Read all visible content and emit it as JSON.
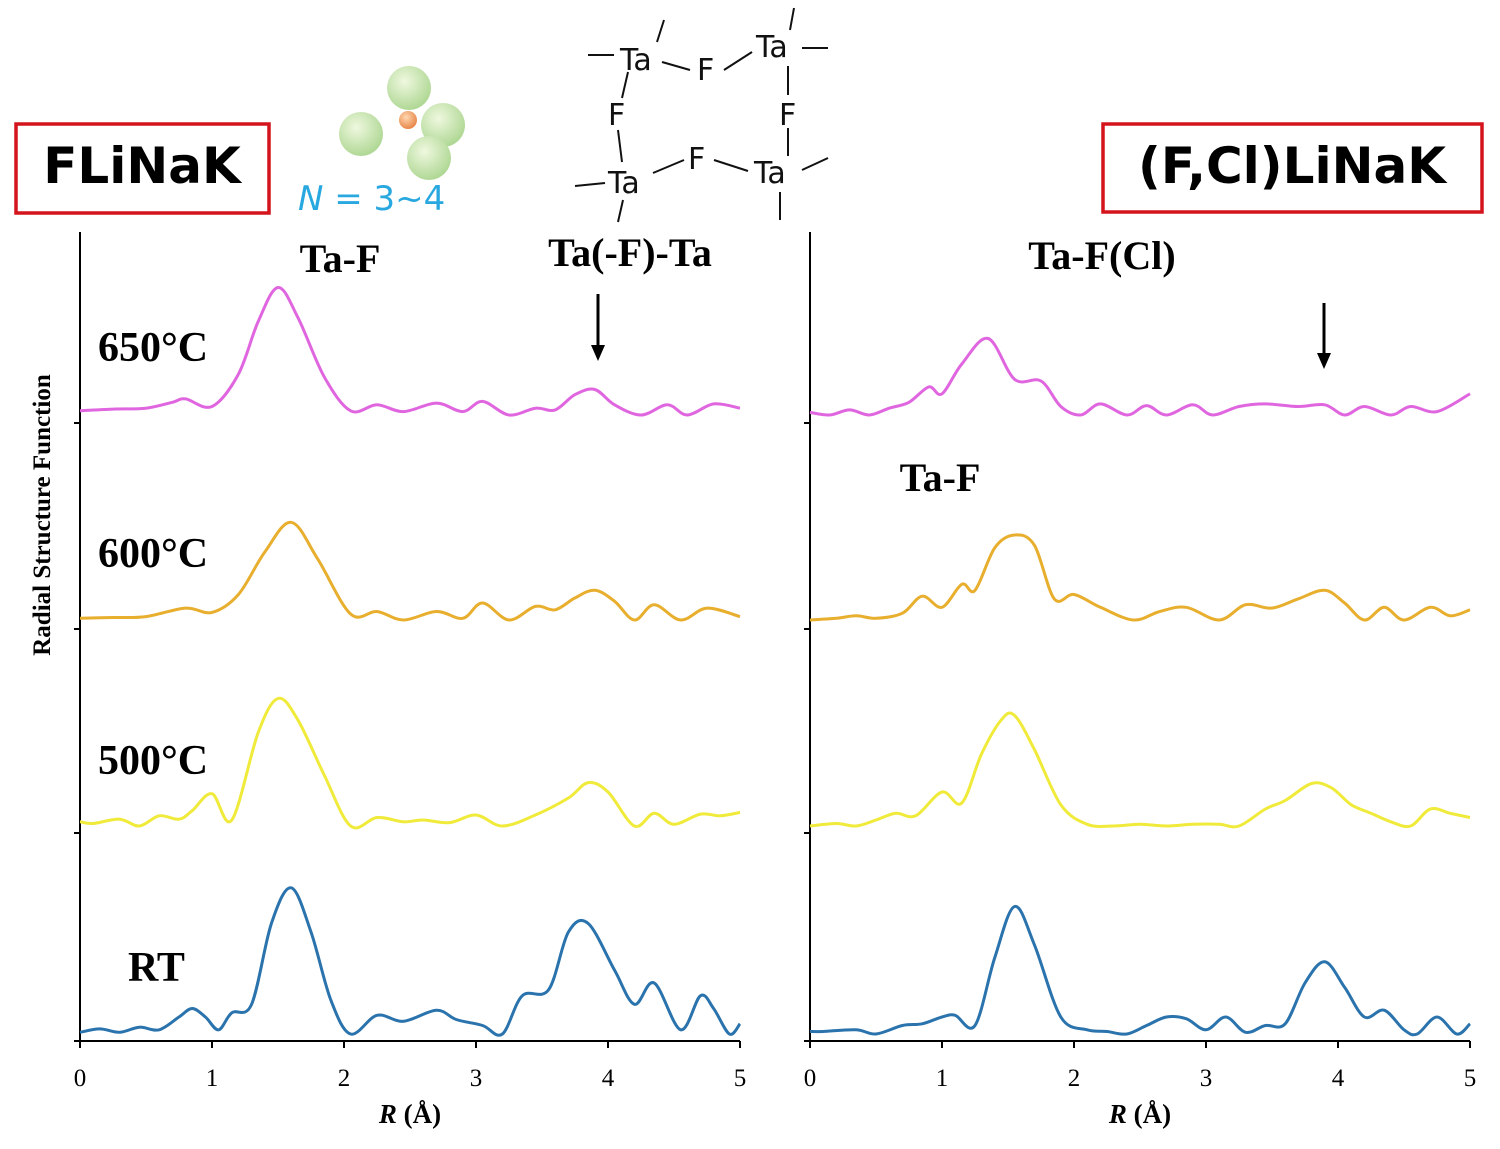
{
  "left_panel": {
    "title": "FLiNaK",
    "n_label_italic": "N",
    "n_label_rest": " = 3~4",
    "peak_labels": [
      "Ta-F",
      "Ta(-F)-Ta"
    ],
    "temperature_labels": [
      "650°C",
      "600°C",
      "500°C",
      "RT"
    ]
  },
  "right_panel": {
    "title": "(F,Cl)LiNaK",
    "peak_labels": [
      "Ta-F(Cl)",
      "Ta-F"
    ]
  },
  "structure_diagram": {
    "atoms": [
      "Ta",
      "F",
      "Ta",
      "F",
      "F",
      "Ta",
      "F",
      "Ta"
    ]
  },
  "colors": {
    "650C": "#e066e0",
    "600C": "#e8ae2e",
    "500C": "#f0ea3a",
    "RT": "#2a73ad",
    "frame": "#d4141c",
    "n_label": "#29a8e0"
  },
  "chart_data": [
    {
      "type": "line",
      "panel": "FLiNaK",
      "xlabel_italic": "R",
      "xlabel_rest": " (Å)",
      "ylabel": "Radial Structure Function",
      "xlim": [
        0,
        5
      ],
      "xticks": [
        "0",
        "1",
        "2",
        "3",
        "4",
        "5"
      ],
      "series": [
        {
          "name": "650°C",
          "color": "#e066e0",
          "x": [
            0.0,
            0.25,
            0.5,
            0.7,
            0.8,
            1.0,
            1.2,
            1.35,
            1.5,
            1.65,
            1.85,
            2.05,
            2.25,
            2.45,
            2.7,
            2.9,
            3.05,
            3.25,
            3.45,
            3.6,
            3.75,
            3.9,
            4.05,
            4.25,
            4.45,
            4.6,
            4.8,
            5.0
          ],
          "y": [
            0.05,
            0.07,
            0.08,
            0.15,
            0.19,
            0.1,
            0.48,
            1.1,
            1.5,
            1.15,
            0.45,
            0.05,
            0.12,
            0.04,
            0.14,
            0.04,
            0.16,
            0.0,
            0.08,
            0.06,
            0.24,
            0.3,
            0.12,
            0.0,
            0.12,
            0.0,
            0.13,
            0.08
          ]
        },
        {
          "name": "600°C",
          "color": "#e8ae2e",
          "x": [
            0.0,
            0.25,
            0.5,
            0.8,
            1.0,
            1.2,
            1.4,
            1.6,
            1.8,
            2.05,
            2.25,
            2.45,
            2.7,
            2.9,
            3.05,
            3.25,
            3.45,
            3.6,
            3.75,
            3.9,
            4.05,
            4.2,
            4.35,
            4.55,
            4.75,
            5.0
          ],
          "y": [
            0.02,
            0.03,
            0.04,
            0.14,
            0.09,
            0.3,
            0.8,
            1.15,
            0.72,
            0.07,
            0.1,
            0.0,
            0.1,
            0.02,
            0.2,
            0.0,
            0.16,
            0.12,
            0.26,
            0.35,
            0.22,
            0.0,
            0.18,
            0.0,
            0.14,
            0.04
          ]
        },
        {
          "name": "500°C",
          "color": "#f0ea3a",
          "x": [
            0.0,
            0.1,
            0.3,
            0.45,
            0.6,
            0.75,
            0.85,
            1.0,
            1.15,
            1.35,
            1.5,
            1.65,
            1.85,
            2.05,
            2.25,
            2.45,
            2.6,
            2.8,
            3.0,
            3.2,
            3.45,
            3.7,
            3.85,
            4.0,
            4.2,
            4.35,
            4.5,
            4.7,
            4.85,
            5.0
          ],
          "y": [
            0.05,
            0.03,
            0.08,
            0.0,
            0.12,
            0.08,
            0.18,
            0.38,
            0.07,
            1.1,
            1.5,
            1.25,
            0.6,
            0.0,
            0.1,
            0.05,
            0.07,
            0.04,
            0.13,
            0.0,
            0.13,
            0.33,
            0.51,
            0.4,
            0.0,
            0.15,
            0.02,
            0.14,
            0.12,
            0.16
          ]
        },
        {
          "name": "RT",
          "color": "#2a73ad",
          "x": [
            0.0,
            0.15,
            0.3,
            0.45,
            0.6,
            0.75,
            0.85,
            0.95,
            1.05,
            1.15,
            1.3,
            1.45,
            1.6,
            1.75,
            1.9,
            2.05,
            2.25,
            2.45,
            2.7,
            2.85,
            3.05,
            3.2,
            3.35,
            3.55,
            3.7,
            3.85,
            4.05,
            4.2,
            4.35,
            4.55,
            4.7,
            4.8,
            4.92,
            5.0
          ],
          "y": [
            0.02,
            0.06,
            0.02,
            0.08,
            0.05,
            0.2,
            0.3,
            0.2,
            0.05,
            0.25,
            0.35,
            1.3,
            1.72,
            1.2,
            0.4,
            0.0,
            0.22,
            0.15,
            0.28,
            0.17,
            0.1,
            0.0,
            0.45,
            0.52,
            1.2,
            1.3,
            0.75,
            0.35,
            0.6,
            0.05,
            0.45,
            0.3,
            0.0,
            0.12
          ]
        }
      ]
    },
    {
      "type": "line",
      "panel": "(F,Cl)LiNaK",
      "xlabel_italic": "R",
      "xlabel_rest": " (Å)",
      "xlim": [
        0,
        5
      ],
      "xticks": [
        "0",
        "1",
        "2",
        "3",
        "4",
        "5"
      ],
      "series": [
        {
          "name": "650°C",
          "color": "#e066e0",
          "x": [
            0.0,
            0.15,
            0.3,
            0.45,
            0.6,
            0.75,
            0.9,
            1.0,
            1.15,
            1.35,
            1.55,
            1.75,
            1.9,
            2.05,
            2.2,
            2.4,
            2.55,
            2.7,
            2.9,
            3.05,
            3.25,
            3.45,
            3.7,
            3.9,
            4.05,
            4.2,
            4.4,
            4.55,
            4.75,
            5.0
          ],
          "y": [
            0.03,
            0.0,
            0.06,
            0.0,
            0.08,
            0.15,
            0.33,
            0.25,
            0.6,
            0.9,
            0.42,
            0.4,
            0.1,
            0.0,
            0.13,
            0.0,
            0.11,
            0.0,
            0.12,
            0.0,
            0.1,
            0.13,
            0.1,
            0.12,
            0.0,
            0.1,
            0.0,
            0.1,
            0.04,
            0.25
          ]
        },
        {
          "name": "600°C",
          "color": "#e8ae2e",
          "x": [
            0.0,
            0.2,
            0.35,
            0.5,
            0.7,
            0.85,
            1.0,
            1.15,
            1.25,
            1.4,
            1.55,
            1.7,
            1.85,
            2.0,
            2.2,
            2.45,
            2.65,
            2.85,
            3.1,
            3.3,
            3.5,
            3.7,
            3.9,
            4.05,
            4.2,
            4.35,
            4.5,
            4.7,
            4.85,
            5.0
          ],
          "y": [
            0.0,
            0.02,
            0.05,
            0.02,
            0.08,
            0.28,
            0.15,
            0.42,
            0.35,
            0.85,
            1.0,
            0.88,
            0.25,
            0.3,
            0.15,
            0.0,
            0.1,
            0.15,
            0.0,
            0.18,
            0.14,
            0.25,
            0.35,
            0.2,
            0.0,
            0.15,
            0.0,
            0.15,
            0.05,
            0.12
          ]
        },
        {
          "name": "500°C",
          "color": "#f0ea3a",
          "x": [
            0.0,
            0.2,
            0.35,
            0.5,
            0.65,
            0.8,
            1.0,
            1.15,
            1.3,
            1.45,
            1.55,
            1.7,
            1.9,
            2.1,
            2.3,
            2.5,
            2.7,
            2.9,
            3.1,
            3.25,
            3.45,
            3.6,
            3.8,
            3.95,
            4.1,
            4.25,
            4.4,
            4.55,
            4.7,
            4.85,
            5.0
          ],
          "y": [
            0.0,
            0.03,
            0.0,
            0.07,
            0.15,
            0.12,
            0.4,
            0.27,
            0.85,
            1.25,
            1.3,
            0.9,
            0.25,
            0.02,
            0.0,
            0.02,
            0.0,
            0.02,
            0.02,
            0.0,
            0.2,
            0.3,
            0.5,
            0.45,
            0.25,
            0.15,
            0.05,
            0.0,
            0.2,
            0.15,
            0.1
          ]
        },
        {
          "name": "RT",
          "color": "#2a73ad",
          "x": [
            0.0,
            0.1,
            0.35,
            0.5,
            0.7,
            0.85,
            1.0,
            1.1,
            1.25,
            1.4,
            1.55,
            1.7,
            1.9,
            2.1,
            2.25,
            2.4,
            2.55,
            2.7,
            2.85,
            3.0,
            3.15,
            3.3,
            3.45,
            3.6,
            3.75,
            3.9,
            4.05,
            4.2,
            4.35,
            4.5,
            4.6,
            4.75,
            4.9,
            5.0
          ],
          "y": [
            0.03,
            0.03,
            0.05,
            0.0,
            0.1,
            0.12,
            0.2,
            0.22,
            0.1,
            0.9,
            1.5,
            1.05,
            0.2,
            0.05,
            0.03,
            0.0,
            0.1,
            0.2,
            0.18,
            0.05,
            0.2,
            0.02,
            0.1,
            0.12,
            0.6,
            0.85,
            0.55,
            0.2,
            0.28,
            0.05,
            0.0,
            0.2,
            0.0,
            0.12
          ]
        }
      ]
    }
  ]
}
